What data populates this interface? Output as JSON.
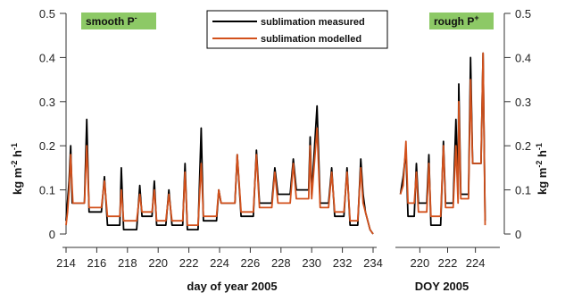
{
  "chart_data": {
    "type": "line",
    "colors": {
      "measured": "#000000",
      "modelled": "#d2511c",
      "badge": "#8dc966"
    },
    "legend": {
      "placement": "top-center",
      "entries": [
        "sublimation measured",
        "sublimation modelled"
      ]
    },
    "ylabel": {
      "main": "kg m",
      "sup1": "-2",
      "mid": " h",
      "sup2": "-1"
    },
    "ylim": [
      0,
      0.5
    ],
    "yticks": [
      "0",
      "0.1",
      "0.2",
      "0.3",
      "0.4",
      "0.5"
    ],
    "panels": [
      {
        "id": "smooth",
        "badge": {
          "text": "smooth P",
          "sup": "-"
        },
        "xlabel": "day of year 2005",
        "xlim": [
          214,
          234
        ],
        "xticks": [
          "214",
          "216",
          "218",
          "220",
          "222",
          "224",
          "226",
          "228",
          "230",
          "232",
          "234"
        ],
        "series": [
          {
            "name": "sublimation measured",
            "points": [
              [
                214.0,
                0.03
              ],
              [
                214.2,
                0.12
              ],
              [
                214.3,
                0.2
              ],
              [
                214.4,
                0.07
              ],
              [
                215.2,
                0.07
              ],
              [
                215.35,
                0.26
              ],
              [
                215.5,
                0.05
              ],
              [
                216.3,
                0.05
              ],
              [
                216.5,
                0.13
              ],
              [
                216.7,
                0.02
              ],
              [
                217.5,
                0.02
              ],
              [
                217.6,
                0.15
              ],
              [
                217.75,
                0.01
              ],
              [
                218.6,
                0.01
              ],
              [
                218.8,
                0.11
              ],
              [
                218.95,
                0.04
              ],
              [
                219.6,
                0.04
              ],
              [
                219.75,
                0.12
              ],
              [
                219.9,
                0.02
              ],
              [
                220.5,
                0.02
              ],
              [
                220.7,
                0.1
              ],
              [
                220.9,
                0.02
              ],
              [
                221.6,
                0.02
              ],
              [
                221.75,
                0.16
              ],
              [
                221.9,
                0.01
              ],
              [
                222.6,
                0.01
              ],
              [
                222.8,
                0.24
              ],
              [
                222.95,
                0.03
              ],
              [
                223.8,
                0.03
              ],
              [
                223.95,
                0.1
              ],
              [
                224.1,
                0.07
              ],
              [
                225.0,
                0.07
              ],
              [
                225.15,
                0.18
              ],
              [
                225.4,
                0.04
              ],
              [
                226.2,
                0.04
              ],
              [
                226.4,
                0.19
              ],
              [
                226.6,
                0.07
              ],
              [
                227.4,
                0.07
              ],
              [
                227.6,
                0.15
              ],
              [
                227.8,
                0.09
              ],
              [
                228.6,
                0.09
              ],
              [
                228.8,
                0.17
              ],
              [
                229.0,
                0.1
              ],
              [
                229.8,
                0.1
              ],
              [
                229.9,
                0.22
              ],
              [
                230.0,
                0.09
              ],
              [
                230.35,
                0.29
              ],
              [
                230.55,
                0.07
              ],
              [
                231.1,
                0.07
              ],
              [
                231.3,
                0.15
              ],
              [
                231.5,
                0.04
              ],
              [
                232.1,
                0.04
              ],
              [
                232.3,
                0.15
              ],
              [
                232.5,
                0.02
              ],
              [
                233.0,
                0.02
              ],
              [
                233.2,
                0.17
              ],
              [
                233.35,
                0.09
              ],
              [
                233.5,
                0.05
              ],
              [
                233.8,
                0.01
              ],
              [
                234.0,
                0.0
              ]
            ]
          },
          {
            "name": "sublimation modelled",
            "points": [
              [
                214.0,
                0.02
              ],
              [
                214.1,
                0.05
              ],
              [
                214.2,
                0.1
              ],
              [
                214.3,
                0.18
              ],
              [
                214.38,
                0.12
              ],
              [
                214.45,
                0.07
              ],
              [
                215.2,
                0.07
              ],
              [
                215.35,
                0.2
              ],
              [
                215.5,
                0.06
              ],
              [
                216.3,
                0.06
              ],
              [
                216.5,
                0.12
              ],
              [
                216.7,
                0.04
              ],
              [
                217.5,
                0.04
              ],
              [
                217.6,
                0.1
              ],
              [
                217.75,
                0.03
              ],
              [
                218.6,
                0.03
              ],
              [
                218.8,
                0.09
              ],
              [
                218.95,
                0.05
              ],
              [
                219.6,
                0.05
              ],
              [
                219.75,
                0.1
              ],
              [
                219.9,
                0.03
              ],
              [
                220.5,
                0.03
              ],
              [
                220.7,
                0.09
              ],
              [
                220.9,
                0.03
              ],
              [
                221.6,
                0.03
              ],
              [
                221.75,
                0.14
              ],
              [
                221.9,
                0.02
              ],
              [
                222.6,
                0.02
              ],
              [
                222.8,
                0.16
              ],
              [
                222.95,
                0.04
              ],
              [
                223.8,
                0.04
              ],
              [
                223.95,
                0.1
              ],
              [
                224.1,
                0.07
              ],
              [
                225.0,
                0.07
              ],
              [
                225.15,
                0.18
              ],
              [
                225.4,
                0.05
              ],
              [
                226.2,
                0.05
              ],
              [
                226.4,
                0.18
              ],
              [
                226.6,
                0.06
              ],
              [
                227.4,
                0.06
              ],
              [
                227.6,
                0.14
              ],
              [
                227.8,
                0.07
              ],
              [
                228.6,
                0.07
              ],
              [
                228.8,
                0.16
              ],
              [
                229.0,
                0.08
              ],
              [
                229.8,
                0.08
              ],
              [
                229.9,
                0.2
              ],
              [
                230.0,
                0.08
              ],
              [
                230.35,
                0.24
              ],
              [
                230.55,
                0.06
              ],
              [
                231.1,
                0.06
              ],
              [
                231.3,
                0.14
              ],
              [
                231.5,
                0.05
              ],
              [
                232.1,
                0.05
              ],
              [
                232.3,
                0.14
              ],
              [
                232.5,
                0.03
              ],
              [
                233.0,
                0.03
              ],
              [
                233.2,
                0.15
              ],
              [
                233.35,
                0.07
              ],
              [
                233.5,
                0.05
              ],
              [
                233.8,
                0.01
              ],
              [
                234.0,
                0.0
              ]
            ]
          }
        ]
      },
      {
        "id": "rough",
        "badge": {
          "text": "rough  P",
          "sup": "+"
        },
        "xlabel": "DOY 2005",
        "xlim": [
          218.5,
          225.5
        ],
        "xticks": [
          "220",
          "222",
          "224"
        ],
        "series": [
          {
            "name": "sublimation measured",
            "points": [
              [
                218.6,
                0.09
              ],
              [
                218.8,
                0.13
              ],
              [
                219.0,
                0.19
              ],
              [
                219.15,
                0.04
              ],
              [
                219.6,
                0.04
              ],
              [
                219.75,
                0.16
              ],
              [
                219.9,
                0.07
              ],
              [
                220.5,
                0.07
              ],
              [
                220.65,
                0.18
              ],
              [
                220.8,
                0.02
              ],
              [
                221.5,
                0.02
              ],
              [
                221.7,
                0.21
              ],
              [
                221.85,
                0.07
              ],
              [
                222.4,
                0.07
              ],
              [
                222.6,
                0.26
              ],
              [
                222.75,
                0.09
              ],
              [
                222.8,
                0.34
              ],
              [
                222.95,
                0.09
              ],
              [
                223.5,
                0.09
              ],
              [
                223.65,
                0.4
              ],
              [
                223.8,
                0.16
              ],
              [
                224.4,
                0.16
              ],
              [
                224.55,
                0.41
              ],
              [
                224.7,
                0.03
              ]
            ]
          },
          {
            "name": "sublimation modelled",
            "points": [
              [
                218.6,
                0.09
              ],
              [
                218.8,
                0.11
              ],
              [
                219.0,
                0.21
              ],
              [
                219.15,
                0.07
              ],
              [
                219.6,
                0.07
              ],
              [
                219.75,
                0.14
              ],
              [
                219.9,
                0.05
              ],
              [
                220.5,
                0.05
              ],
              [
                220.65,
                0.16
              ],
              [
                220.8,
                0.04
              ],
              [
                221.5,
                0.04
              ],
              [
                221.7,
                0.2
              ],
              [
                221.85,
                0.06
              ],
              [
                222.4,
                0.06
              ],
              [
                222.6,
                0.2
              ],
              [
                222.75,
                0.07
              ],
              [
                222.8,
                0.3
              ],
              [
                222.95,
                0.08
              ],
              [
                223.5,
                0.08
              ],
              [
                223.65,
                0.35
              ],
              [
                223.8,
                0.16
              ],
              [
                224.4,
                0.16
              ],
              [
                224.55,
                0.41
              ],
              [
                224.7,
                0.02
              ]
            ]
          }
        ]
      }
    ]
  }
}
